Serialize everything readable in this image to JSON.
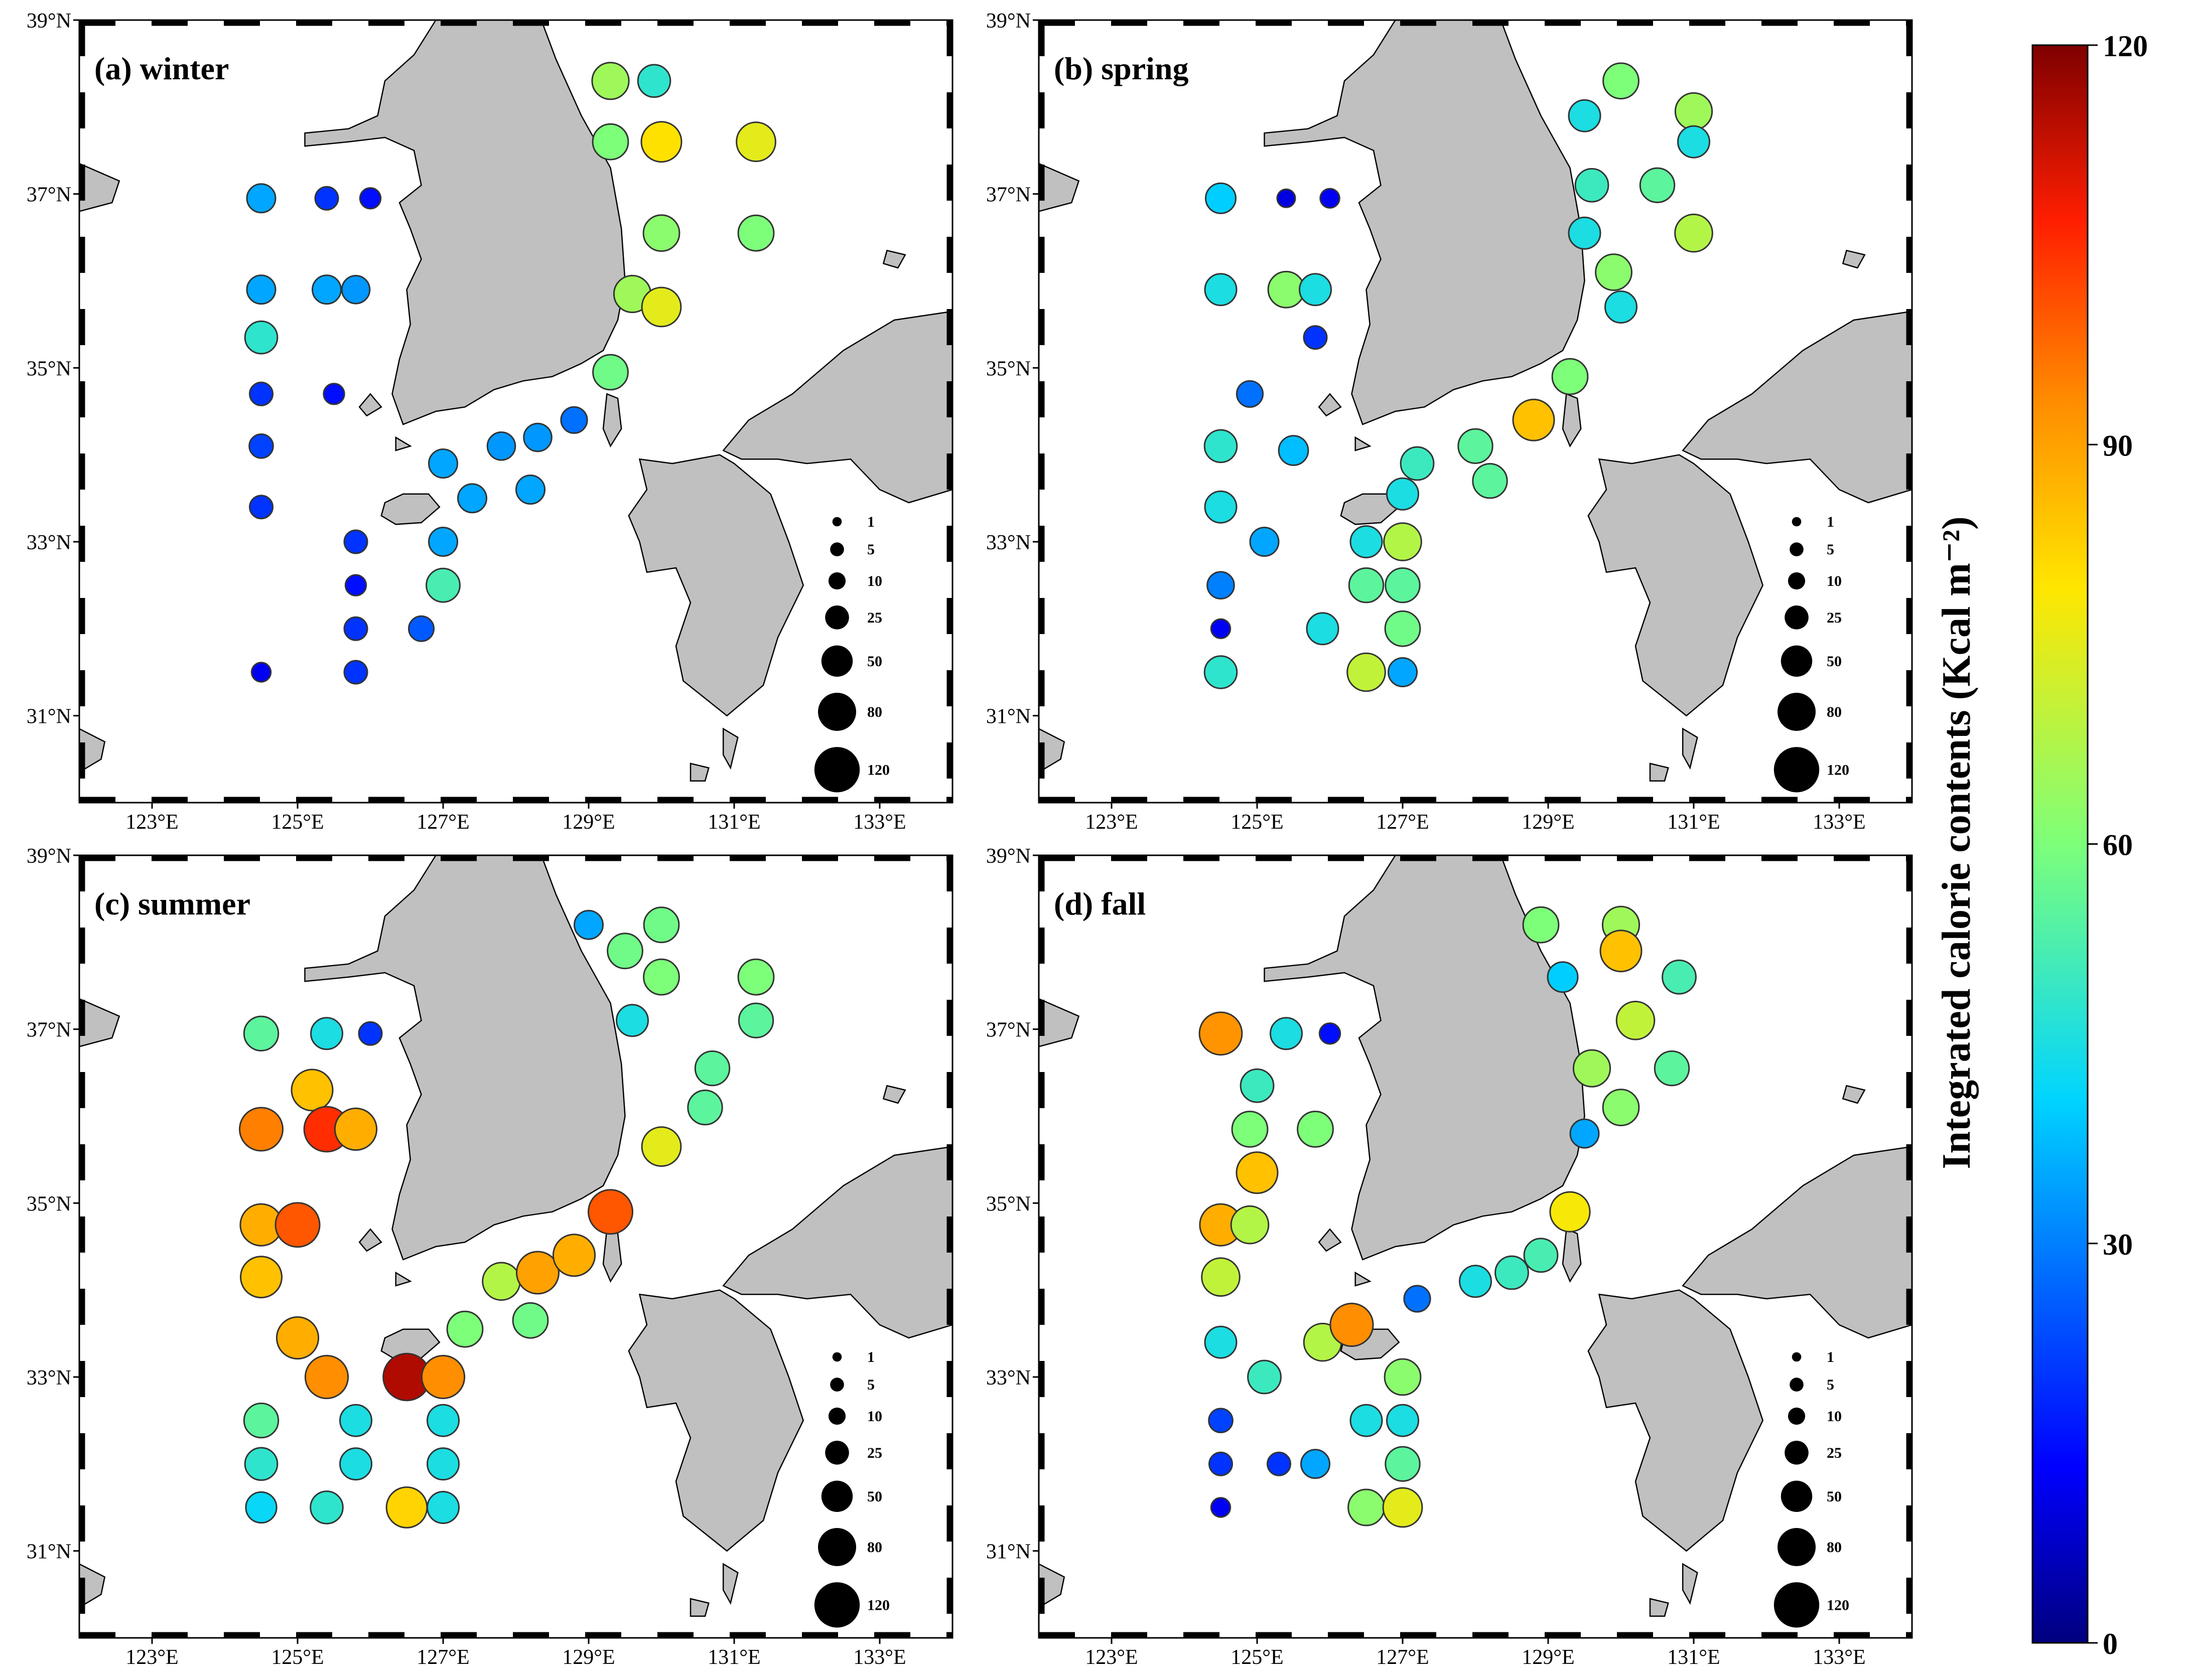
{
  "figure": {
    "colorbar": {
      "title": "Integrated calorie contents (Kcal m⁻²)",
      "ticks": [
        0,
        30,
        60,
        90,
        120
      ],
      "range": [
        0,
        120
      ]
    },
    "lon_ticks": [
      "123°E",
      "125°E",
      "127°E",
      "129°E",
      "131°E",
      "133°E"
    ],
    "lon_values": [
      123,
      125,
      127,
      129,
      131,
      133
    ],
    "lat_ticks": [
      "39°N",
      "37°N",
      "35°N",
      "33°N",
      "31°N"
    ],
    "lat_values": [
      39,
      37,
      35,
      33,
      31
    ],
    "map_extent": {
      "lon": [
        122,
        134
      ],
      "lat": [
        30,
        39
      ]
    },
    "size_legend": {
      "values": [
        1,
        5,
        10,
        25,
        50,
        80,
        120
      ],
      "labels": [
        "1",
        "5",
        "10",
        "25",
        "50",
        "80",
        "120"
      ]
    },
    "land_color": "#c0c0c0",
    "panels": [
      {
        "id": "a",
        "label": "(a) winter",
        "stations": [
          [
            124.5,
            36.95,
            35
          ],
          [
            125.4,
            36.95,
            20
          ],
          [
            126.0,
            36.95,
            15
          ],
          [
            124.5,
            35.9,
            35
          ],
          [
            125.4,
            35.9,
            35
          ],
          [
            125.8,
            35.9,
            33
          ],
          [
            124.5,
            35.35,
            48
          ],
          [
            124.5,
            34.7,
            20
          ],
          [
            125.5,
            34.7,
            15
          ],
          [
            124.5,
            34.1,
            22
          ],
          [
            124.5,
            33.4,
            20
          ],
          [
            127.0,
            33.9,
            35
          ],
          [
            127.4,
            33.5,
            35
          ],
          [
            128.2,
            33.6,
            35
          ],
          [
            127.8,
            34.1,
            33
          ],
          [
            128.3,
            34.2,
            33
          ],
          [
            128.8,
            34.4,
            28
          ],
          [
            125.8,
            33.0,
            20
          ],
          [
            125.8,
            32.5,
            15
          ],
          [
            125.8,
            32.0,
            20
          ],
          [
            125.8,
            31.5,
            20
          ],
          [
            124.5,
            31.5,
            12
          ],
          [
            127.0,
            33.0,
            35
          ],
          [
            127.0,
            32.5,
            52
          ],
          [
            126.7,
            32.0,
            25
          ],
          [
            129.3,
            38.3,
            65
          ],
          [
            129.9,
            38.3,
            48
          ],
          [
            129.3,
            37.6,
            60
          ],
          [
            130.0,
            37.6,
            80
          ],
          [
            131.3,
            37.6,
            75
          ],
          [
            130.0,
            36.55,
            62
          ],
          [
            131.3,
            36.55,
            60
          ],
          [
            129.6,
            35.85,
            65
          ],
          [
            130.0,
            35.7,
            75
          ],
          [
            129.3,
            34.95,
            58
          ]
        ]
      },
      {
        "id": "b",
        "label": "(b) spring",
        "stations": [
          [
            124.5,
            36.95,
            40
          ],
          [
            125.4,
            36.95,
            10
          ],
          [
            126.0,
            36.95,
            12
          ],
          [
            124.5,
            35.9,
            45
          ],
          [
            125.4,
            35.9,
            62
          ],
          [
            125.8,
            35.9,
            45
          ],
          [
            125.8,
            35.35,
            20
          ],
          [
            124.9,
            34.7,
            28
          ],
          [
            124.5,
            34.1,
            48
          ],
          [
            125.5,
            34.05,
            38
          ],
          [
            124.5,
            33.4,
            45
          ],
          [
            125.1,
            33.0,
            35
          ],
          [
            124.5,
            32.5,
            30
          ],
          [
            124.5,
            32.0,
            12
          ],
          [
            124.5,
            31.5,
            48
          ],
          [
            125.9,
            32.0,
            45
          ],
          [
            126.5,
            33.0,
            45
          ],
          [
            127.0,
            33.0,
            68
          ],
          [
            126.5,
            32.5,
            55
          ],
          [
            127.0,
            32.5,
            55
          ],
          [
            127.0,
            32.0,
            58
          ],
          [
            126.5,
            31.5,
            70
          ],
          [
            127.0,
            31.5,
            35
          ],
          [
            127.0,
            33.55,
            45
          ],
          [
            127.2,
            33.9,
            50
          ],
          [
            128.0,
            34.1,
            55
          ],
          [
            128.2,
            33.7,
            55
          ],
          [
            128.8,
            34.4,
            85
          ],
          [
            129.3,
            34.9,
            60
          ],
          [
            129.5,
            37.9,
            45
          ],
          [
            130.0,
            38.3,
            60
          ],
          [
            131.0,
            37.95,
            65
          ],
          [
            131.0,
            37.6,
            45
          ],
          [
            129.6,
            37.1,
            50
          ],
          [
            130.5,
            37.1,
            55
          ],
          [
            129.5,
            36.55,
            45
          ],
          [
            129.9,
            36.1,
            62
          ],
          [
            130.0,
            35.7,
            45
          ],
          [
            131.0,
            36.55,
            68
          ]
        ]
      },
      {
        "id": "c",
        "label": "(c) summer",
        "stations": [
          [
            124.5,
            36.95,
            55
          ],
          [
            125.4,
            36.95,
            45
          ],
          [
            126.0,
            36.95,
            20
          ],
          [
            124.5,
            35.85,
            95
          ],
          [
            125.2,
            36.3,
            85
          ],
          [
            125.4,
            35.85,
            105
          ],
          [
            125.8,
            35.85,
            88
          ],
          [
            124.5,
            34.75,
            88
          ],
          [
            125.0,
            34.75,
            100
          ],
          [
            124.5,
            34.15,
            85
          ],
          [
            125.0,
            33.45,
            88
          ],
          [
            125.4,
            33.0,
            93
          ],
          [
            126.5,
            33.0,
            115
          ],
          [
            127.0,
            33.0,
            93
          ],
          [
            124.5,
            32.5,
            55
          ],
          [
            124.5,
            32.0,
            48
          ],
          [
            124.5,
            31.5,
            42
          ],
          [
            125.4,
            31.5,
            48
          ],
          [
            125.8,
            32.5,
            45
          ],
          [
            125.8,
            32.0,
            45
          ],
          [
            127.0,
            32.5,
            45
          ],
          [
            127.0,
            32.0,
            45
          ],
          [
            127.0,
            31.5,
            45
          ],
          [
            126.5,
            31.5,
            82
          ],
          [
            127.3,
            33.55,
            60
          ],
          [
            128.2,
            33.65,
            58
          ],
          [
            127.8,
            34.1,
            68
          ],
          [
            128.3,
            34.2,
            90
          ],
          [
            128.8,
            34.4,
            88
          ],
          [
            129.3,
            34.9,
            100
          ],
          [
            129.0,
            38.2,
            35
          ],
          [
            129.5,
            37.9,
            58
          ],
          [
            130.0,
            38.2,
            58
          ],
          [
            130.0,
            37.6,
            60
          ],
          [
            131.3,
            37.6,
            60
          ],
          [
            131.3,
            37.1,
            55
          ],
          [
            129.6,
            37.1,
            45
          ],
          [
            130.7,
            36.55,
            55
          ],
          [
            130.6,
            36.1,
            55
          ],
          [
            130.0,
            35.65,
            75
          ]
        ]
      },
      {
        "id": "d",
        "label": "(d) fall",
        "stations": [
          [
            124.5,
            36.95,
            92
          ],
          [
            125.4,
            36.95,
            45
          ],
          [
            126.0,
            36.95,
            15
          ],
          [
            125.0,
            36.35,
            50
          ],
          [
            124.9,
            35.85,
            60
          ],
          [
            125.8,
            35.85,
            60
          ],
          [
            125.0,
            35.35,
            85
          ],
          [
            124.5,
            34.75,
            88
          ],
          [
            124.9,
            34.75,
            68
          ],
          [
            124.5,
            34.15,
            70
          ],
          [
            124.5,
            33.4,
            45
          ],
          [
            125.1,
            33.0,
            50
          ],
          [
            125.9,
            33.4,
            68
          ],
          [
            126.3,
            33.6,
            93
          ],
          [
            124.5,
            32.5,
            22
          ],
          [
            124.5,
            32.0,
            20
          ],
          [
            124.5,
            31.5,
            12
          ],
          [
            125.3,
            32.0,
            20
          ],
          [
            125.8,
            32.0,
            35
          ],
          [
            126.5,
            32.5,
            45
          ],
          [
            127.0,
            33.0,
            62
          ],
          [
            127.0,
            32.5,
            45
          ],
          [
            127.0,
            32.0,
            55
          ],
          [
            126.5,
            31.5,
            62
          ],
          [
            127.0,
            31.5,
            75
          ],
          [
            127.2,
            33.9,
            28
          ],
          [
            128.0,
            34.1,
            45
          ],
          [
            128.5,
            34.2,
            50
          ],
          [
            128.9,
            34.4,
            52
          ],
          [
            129.3,
            34.9,
            78
          ],
          [
            128.9,
            38.2,
            60
          ],
          [
            130.0,
            38.2,
            65
          ],
          [
            130.0,
            37.9,
            85
          ],
          [
            129.2,
            37.6,
            40
          ],
          [
            130.8,
            37.6,
            52
          ],
          [
            130.2,
            37.1,
            70
          ],
          [
            129.6,
            36.55,
            65
          ],
          [
            130.7,
            36.55,
            55
          ],
          [
            130.0,
            36.1,
            62
          ],
          [
            129.5,
            35.8,
            35
          ]
        ]
      }
    ]
  }
}
